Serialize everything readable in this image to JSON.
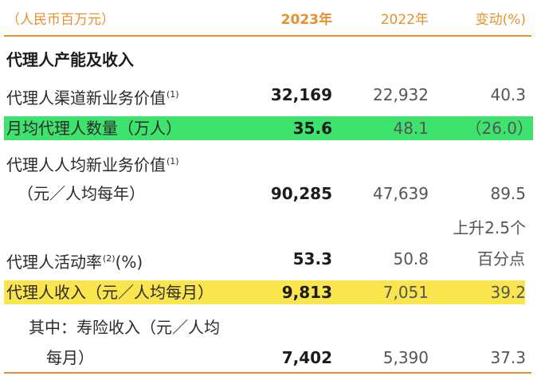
{
  "colors": {
    "accent": "#e8902f",
    "highlight_green": "#3ee36d",
    "highlight_yellow": "#fbe54e"
  },
  "header": {
    "unit": "（人民币百万元）",
    "col_2023": "2023年",
    "col_2022": "2022年",
    "col_change": "变动(%)"
  },
  "section_title": "代理人产能及收入",
  "rows": [
    {
      "label": "代理人渠道新业务价值",
      "note": "(1)",
      "v2023": "32,169",
      "v2022": "22,932",
      "change": "40.3"
    },
    {
      "label": "月均代理人数量（万人）",
      "v2023": "35.6",
      "v2022": "48.1",
      "change": "（26.0）",
      "highlight": "green"
    },
    {
      "label_line1": "代理人人均新业务价值",
      "note": "(1)",
      "label_line2": "（元／人均每年）",
      "v2023": "90,285",
      "v2022": "47,639",
      "change": "89.5"
    },
    {
      "label": "代理人活动率",
      "note": "(2)",
      "label_suffix": "(%)",
      "v2023": "53.3",
      "v2022": "50.8",
      "change_line1": "上升2.5个",
      "change_line2": "百分点"
    },
    {
      "label": "代理人收入（元／人均每月）",
      "v2023": "9,813",
      "v2022": "7,051",
      "change": "39.2",
      "highlight": "yellow"
    },
    {
      "label_line1": "其中：寿险收入（元／人均",
      "label_line2": "每月）",
      "v2023": "7,402",
      "v2022": "5,390",
      "change": "37.3"
    }
  ]
}
